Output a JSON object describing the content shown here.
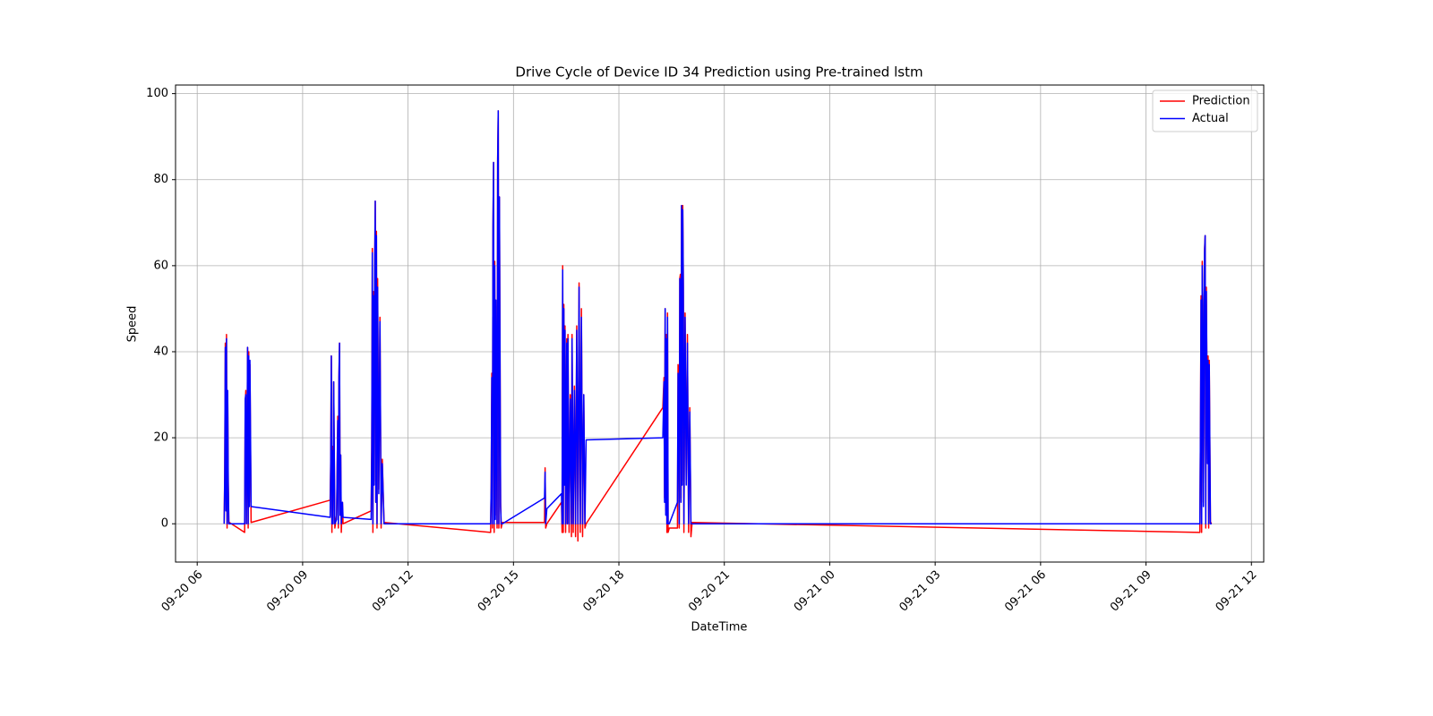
{
  "chart_data": {
    "type": "line",
    "title": "Drive Cycle of Device ID 34 Prediction using Pre-trained lstm",
    "x_label": "DateTime",
    "y_label": "Speed",
    "x": [
      "09-20 06:46",
      "09-20 06:47",
      "09-20 06:48",
      "09-20 06:49",
      "09-20 06:50",
      "09-20 06:51",
      "09-20 06:52",
      "09-20 06:53",
      "09-20 06:54",
      "09-20 06:55",
      "09-20 07:21",
      "09-20 07:22",
      "09-20 07:23",
      "09-20 07:24",
      "09-20 07:25",
      "09-20 07:26",
      "09-20 07:27",
      "09-20 07:28",
      "09-20 07:29",
      "09-20 07:30",
      "09-20 07:32",
      "09-20 09:47",
      "09-20 09:48",
      "09-20 09:49",
      "09-20 09:50",
      "09-20 09:51",
      "09-20 09:52",
      "09-20 09:53",
      "09-20 09:55",
      "09-20 09:58",
      "09-20 10:00",
      "09-20 10:01",
      "09-20 10:02",
      "09-20 10:03",
      "09-20 10:04",
      "09-20 10:05",
      "09-20 10:06",
      "09-20 10:08",
      "09-20 10:09",
      "09-20 10:57",
      "09-20 10:58",
      "09-20 10:59",
      "09-20 11:00",
      "09-20 11:01",
      "09-20 11:02",
      "09-20 11:03",
      "09-20 11:04",
      "09-20 11:05",
      "09-20 11:06",
      "09-20 11:07",
      "09-20 11:08",
      "09-20 11:10",
      "09-20 11:12",
      "09-20 11:14",
      "09-20 11:16",
      "09-20 11:19",
      "09-20 14:21",
      "09-20 14:22",
      "09-20 14:23",
      "09-20 14:24",
      "09-20 14:25",
      "09-20 14:26",
      "09-20 14:27",
      "09-20 14:28",
      "09-20 14:29",
      "09-20 14:30",
      "09-20 14:32",
      "09-20 14:33",
      "09-20 14:34",
      "09-20 14:35",
      "09-20 14:36",
      "09-20 14:38",
      "09-20 14:39",
      "09-20 14:41",
      "09-20 15:53",
      "09-20 15:54",
      "09-20 15:55",
      "09-20 15:57",
      "09-20 16:22",
      "09-20 16:23",
      "09-20 16:24",
      "09-20 16:25",
      "09-20 16:26",
      "09-20 16:27",
      "09-20 16:28",
      "09-20 16:29",
      "09-20 16:31",
      "09-20 16:32",
      "09-20 16:33",
      "09-20 16:35",
      "09-20 16:37",
      "09-20 16:39",
      "09-20 16:40",
      "09-20 16:42",
      "09-20 16:44",
      "09-20 16:46",
      "09-20 16:48",
      "09-20 16:50",
      "09-20 16:52",
      "09-20 16:54",
      "09-20 16:56",
      "09-20 16:58",
      "09-20 17:00",
      "09-20 17:02",
      "09-20 17:04",
      "09-20 19:15",
      "09-20 19:17",
      "09-20 19:18",
      "09-20 19:19",
      "09-20 19:20",
      "09-20 19:21",
      "09-20 19:22",
      "09-20 19:23",
      "09-20 19:24",
      "09-20 19:26",
      "09-20 19:40",
      "09-20 19:41",
      "09-20 19:42",
      "09-20 19:43",
      "09-20 19:44",
      "09-20 19:45",
      "09-20 19:46",
      "09-20 19:47",
      "09-20 19:48",
      "09-20 19:49",
      "09-20 19:50",
      "09-20 19:51",
      "09-20 19:53",
      "09-20 19:55",
      "09-20 19:57",
      "09-20 19:59",
      "09-20 20:01",
      "09-20 20:03",
      "09-20 20:05",
      "09-21 10:32",
      "09-21 10:33",
      "09-21 10:34",
      "09-21 10:35",
      "09-21 10:36",
      "09-21 10:37",
      "09-21 10:38",
      "09-21 10:40",
      "09-21 10:41",
      "09-21 10:42",
      "09-21 10:43",
      "09-21 10:45",
      "09-21 10:46",
      "09-21 10:47",
      "09-21 10:48",
      "09-21 10:50",
      "09-21 10:52"
    ],
    "series": [
      {
        "name": "Prediction",
        "color": "#ff0000",
        "values": [
          0,
          12,
          42,
          5,
          44,
          -1,
          30,
          10,
          0,
          0.3,
          -2,
          28,
          31,
          0,
          15,
          41,
          -1,
          40,
          5,
          37,
          0.3,
          5.5,
          15,
          39,
          -2,
          18,
          0,
          33,
          -1,
          2,
          25,
          -1,
          34,
          42,
          2,
          16,
          -2,
          5,
          0,
          3,
          18,
          64,
          -2,
          54,
          10,
          60,
          75,
          5,
          68,
          -1,
          57,
          8,
          48,
          -1,
          15,
          0.3,
          -2,
          10,
          35,
          -1,
          69,
          84,
          -2,
          61,
          2,
          50,
          -1,
          85,
          96,
          -1,
          76,
          5,
          -1,
          0.3,
          0.3,
          13,
          -1,
          0,
          5,
          -2,
          60,
          -2,
          51,
          10,
          46,
          -2,
          43,
          0,
          44,
          -2,
          30,
          -3,
          44,
          -2,
          32,
          -3,
          46,
          -4,
          56,
          -2,
          50,
          -3,
          30,
          -1,
          0,
          27,
          34,
          6,
          50,
          3,
          44,
          -2,
          49,
          -2,
          -1,
          -1,
          37,
          36,
          -1,
          57,
          58,
          6,
          74,
          10,
          74,
          57,
          -2,
          49,
          10,
          44,
          -2,
          27,
          -3,
          0.3,
          -2,
          22,
          53,
          -2,
          61,
          52,
          5,
          64,
          67,
          -1,
          55,
          15,
          39,
          -1,
          38,
          0,
          0.3
        ]
      },
      {
        "name": "Actual",
        "color": "#0000ff",
        "values": [
          0,
          11,
          41,
          3,
          43,
          0,
          31,
          9,
          0,
          0,
          0,
          29,
          30,
          0,
          14,
          41,
          0,
          39,
          4,
          38,
          4,
          1.5,
          14,
          39,
          0,
          17,
          0,
          33,
          0,
          1,
          24,
          0,
          34,
          42,
          2,
          16,
          0,
          5,
          1.5,
          1,
          17,
          63,
          0,
          53,
          9,
          58,
          75,
          5,
          67,
          0,
          55,
          7,
          47,
          0,
          14,
          0,
          0,
          9,
          34,
          0,
          69,
          84,
          0,
          60,
          1,
          52,
          0,
          84,
          96,
          0,
          76,
          4,
          0,
          0,
          6,
          12,
          0,
          3.5,
          7,
          0,
          59,
          0,
          50,
          9,
          45,
          0,
          42,
          0,
          43,
          0,
          29,
          0,
          43,
          0,
          31,
          0,
          45,
          0,
          55,
          0,
          48,
          0,
          30,
          0,
          19.5,
          20,
          33,
          5,
          50,
          2,
          43,
          0,
          48,
          0,
          0,
          5,
          35,
          34,
          0,
          57,
          56,
          5,
          74,
          9,
          73,
          55,
          0,
          48,
          9,
          42,
          0,
          26,
          0,
          0,
          0,
          21,
          52,
          0,
          60,
          51,
          4,
          63,
          67,
          0,
          54,
          14,
          38,
          0,
          37,
          0,
          0
        ]
      }
    ],
    "xlim": [
      "09-20 05:23",
      "09-21 12:21"
    ],
    "xticks": [
      "09-20 06",
      "09-20 09",
      "09-20 12",
      "09-20 15",
      "09-20 18",
      "09-20 21",
      "09-21 00",
      "09-21 03",
      "09-21 06",
      "09-21 09",
      "09-21 12"
    ],
    "ylim": [
      -8.9,
      102
    ],
    "yticks": [
      0,
      20,
      40,
      60,
      80,
      100
    ],
    "grid": true,
    "legend": "upper right"
  }
}
